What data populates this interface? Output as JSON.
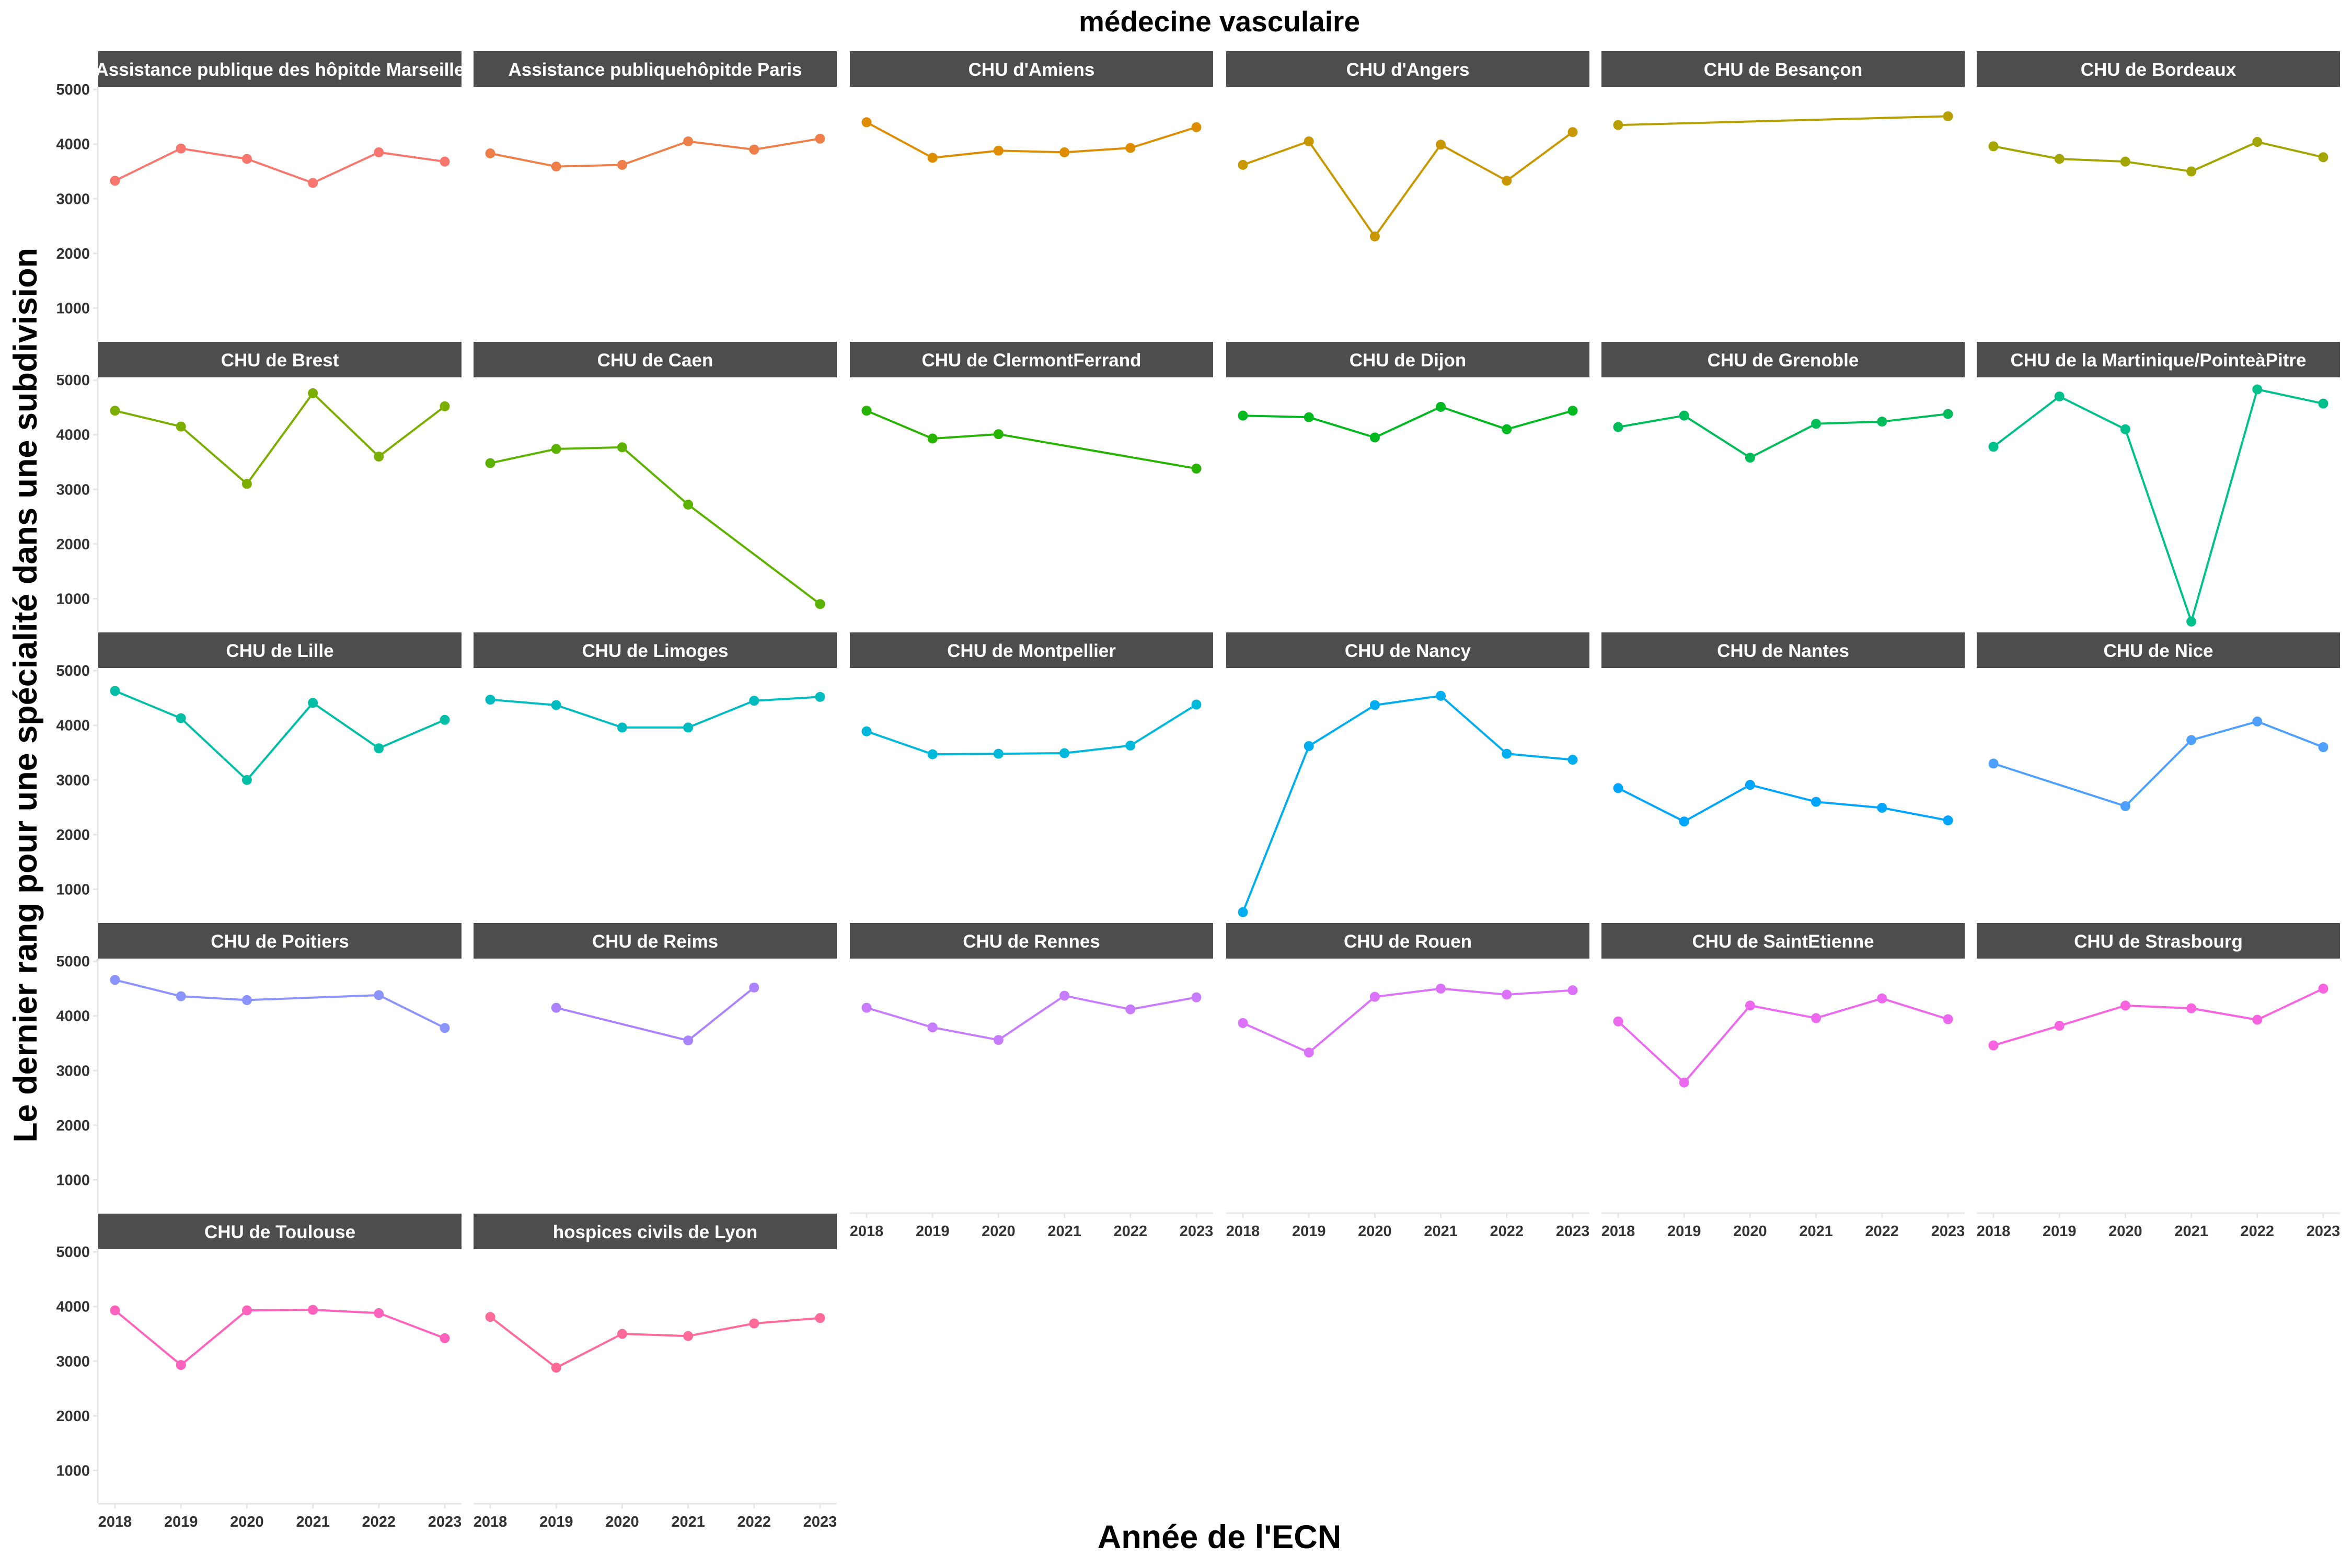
{
  "chart_data": {
    "type": "line",
    "title": "médecine vasculaire",
    "xlabel": "Année de l'ECN",
    "ylabel": "Le dernier rang pour une spécialité dans une subdivision",
    "x": [
      2018,
      2019,
      2020,
      2021,
      2022,
      2023
    ],
    "xlim": [
      2018,
      2023
    ],
    "ylim": [
      400,
      5050
    ],
    "y_ticks": [
      1000,
      2000,
      3000,
      4000,
      5000
    ],
    "grid": false,
    "legend": "none",
    "facets": [
      {
        "name": "Assistance publique des hôpitde Marseille",
        "color": "#F8766D",
        "values": [
          3330,
          3920,
          3730,
          3290,
          3850,
          3680
        ]
      },
      {
        "name": "Assistance publiquehôpitde Paris",
        "color": "#EF7F49",
        "values": [
          3830,
          3590,
          3620,
          4050,
          3900,
          4100
        ]
      },
      {
        "name": "CHU d'Amiens",
        "color": "#DE8C00",
        "values": [
          4400,
          3750,
          3880,
          3850,
          3930,
          4310
        ]
      },
      {
        "name": "CHU d'Angers",
        "color": "#C99800",
        "values": [
          3620,
          4050,
          2310,
          3990,
          3330,
          4220
        ]
      },
      {
        "name": "CHU de Besançon",
        "color": "#B79F00",
        "values": [
          4350,
          null,
          null,
          null,
          null,
          4510
        ]
      },
      {
        "name": "CHU de Bordeaux",
        "color": "#A3A500",
        "values": [
          3960,
          3730,
          3680,
          3500,
          4040,
          3760
        ]
      },
      {
        "name": "CHU de Brest",
        "color": "#7CAE00",
        "values": [
          4440,
          4150,
          3100,
          4760,
          3600,
          4520
        ]
      },
      {
        "name": "CHU de Caen",
        "color": "#5BB300",
        "values": [
          3480,
          3740,
          3770,
          2720,
          null,
          900
        ]
      },
      {
        "name": "CHU de ClermontFerrand",
        "color": "#26B400",
        "values": [
          4440,
          3930,
          4010,
          null,
          null,
          3380
        ]
      },
      {
        "name": "CHU de Dijon",
        "color": "#00B81F",
        "values": [
          4350,
          4320,
          3950,
          4510,
          4100,
          4440
        ]
      },
      {
        "name": "CHU de Grenoble",
        "color": "#00BC59",
        "values": [
          4140,
          4350,
          3580,
          4200,
          4240,
          4380
        ]
      },
      {
        "name": "CHU de la Martinique/PointeàPitre",
        "color": "#00C08B",
        "values": [
          3780,
          4700,
          4100,
          580,
          4830,
          4570
        ]
      },
      {
        "name": "CHU de Lille",
        "color": "#00BFA6",
        "values": [
          4630,
          4130,
          3000,
          4410,
          3580,
          4100
        ]
      },
      {
        "name": "CHU de Limoges",
        "color": "#00BCC1",
        "values": [
          4470,
          4370,
          3960,
          3960,
          4450,
          4520
        ]
      },
      {
        "name": "CHU de Montpellier",
        "color": "#00B8D9",
        "values": [
          3890,
          3470,
          3480,
          3490,
          3630,
          4380
        ]
      },
      {
        "name": "CHU de Nancy",
        "color": "#00ADEE",
        "values": [
          580,
          3620,
          4370,
          4540,
          3480,
          3370
        ]
      },
      {
        "name": "CHU de Nantes",
        "color": "#00A5FF",
        "values": [
          2850,
          2240,
          2910,
          2600,
          2490,
          2260
        ]
      },
      {
        "name": "CHU de Nice",
        "color": "#4DA0FF",
        "values": [
          3300,
          null,
          2520,
          3730,
          4070,
          3600
        ]
      },
      {
        "name": "CHU de Poitiers",
        "color": "#8B93FF",
        "values": [
          4660,
          4360,
          4290,
          null,
          4380,
          3780
        ]
      },
      {
        "name": "CHU de Reims",
        "color": "#AB82FF",
        "values": [
          null,
          4150,
          null,
          3550,
          4520,
          null
        ]
      },
      {
        "name": "CHU de Rennes",
        "color": "#C77CFF",
        "values": [
          4150,
          3790,
          3560,
          4370,
          4120,
          4340
        ]
      },
      {
        "name": "CHU de Rouen",
        "color": "#DC71FA",
        "values": [
          3870,
          3330,
          4350,
          4500,
          4390,
          4470
        ]
      },
      {
        "name": "CHU de SaintEtienne",
        "color": "#EC69EF",
        "values": [
          3900,
          2780,
          4190,
          3960,
          4320,
          3940
        ]
      },
      {
        "name": "CHU de Strasbourg",
        "color": "#F863DF",
        "values": [
          3460,
          3820,
          4190,
          4140,
          3930,
          4500
        ]
      },
      {
        "name": "CHU de Toulouse",
        "color": "#FF62BC",
        "values": [
          3930,
          2930,
          3930,
          3940,
          3880,
          3420
        ]
      },
      {
        "name": "hospices civils de Lyon",
        "color": "#FF6A98",
        "values": [
          3810,
          2880,
          3500,
          3460,
          3690,
          3790
        ]
      }
    ]
  }
}
